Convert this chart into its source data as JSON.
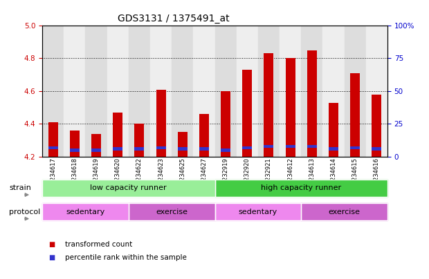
{
  "title": "GDS3131 / 1375491_at",
  "samples": [
    "GSM234617",
    "GSM234618",
    "GSM234619",
    "GSM234620",
    "GSM234622",
    "GSM234623",
    "GSM234625",
    "GSM234627",
    "GSM232919",
    "GSM232920",
    "GSM232921",
    "GSM234612",
    "GSM234613",
    "GSM234614",
    "GSM234615",
    "GSM234616"
  ],
  "transformed_counts": [
    4.41,
    4.36,
    4.34,
    4.47,
    4.4,
    4.61,
    4.35,
    4.46,
    4.6,
    4.73,
    4.83,
    4.8,
    4.85,
    4.53,
    4.71,
    4.58
  ],
  "percentile_ranks": [
    7,
    5,
    5,
    6,
    6,
    7,
    6,
    6,
    5,
    7,
    8,
    8,
    8,
    6,
    7,
    6
  ],
  "ymin": 4.2,
  "ymax": 5.0,
  "yticks": [
    4.2,
    4.4,
    4.6,
    4.8,
    5.0
  ],
  "right_yticks": [
    0,
    25,
    50,
    75,
    100
  ],
  "right_yticklabels": [
    "0",
    "25",
    "50",
    "75",
    "100%"
  ],
  "bar_color": "#CC0000",
  "blue_color": "#3333CC",
  "bar_width": 0.45,
  "strain_groups": [
    {
      "label": "low capacity runner",
      "start": 0,
      "end": 8,
      "color": "#99EE99"
    },
    {
      "label": "high capacity runner",
      "start": 8,
      "end": 16,
      "color": "#44CC44"
    }
  ],
  "protocol_groups": [
    {
      "label": "sedentary",
      "start": 0,
      "end": 4,
      "color": "#EE88EE"
    },
    {
      "label": "exercise",
      "start": 4,
      "end": 8,
      "color": "#CC66CC"
    },
    {
      "label": "sedentary",
      "start": 8,
      "end": 12,
      "color": "#EE88EE"
    },
    {
      "label": "exercise",
      "start": 12,
      "end": 16,
      "color": "#CC66CC"
    }
  ],
  "strain_label": "strain",
  "protocol_label": "protocol",
  "legend_items": [
    {
      "color": "#CC0000",
      "label": "transformed count"
    },
    {
      "color": "#3333CC",
      "label": "percentile rank within the sample"
    }
  ],
  "title_fontsize": 10,
  "tick_fontsize": 7.5,
  "label_fontsize": 8,
  "left_tick_color": "#CC0000",
  "right_tick_color": "#0000CC"
}
